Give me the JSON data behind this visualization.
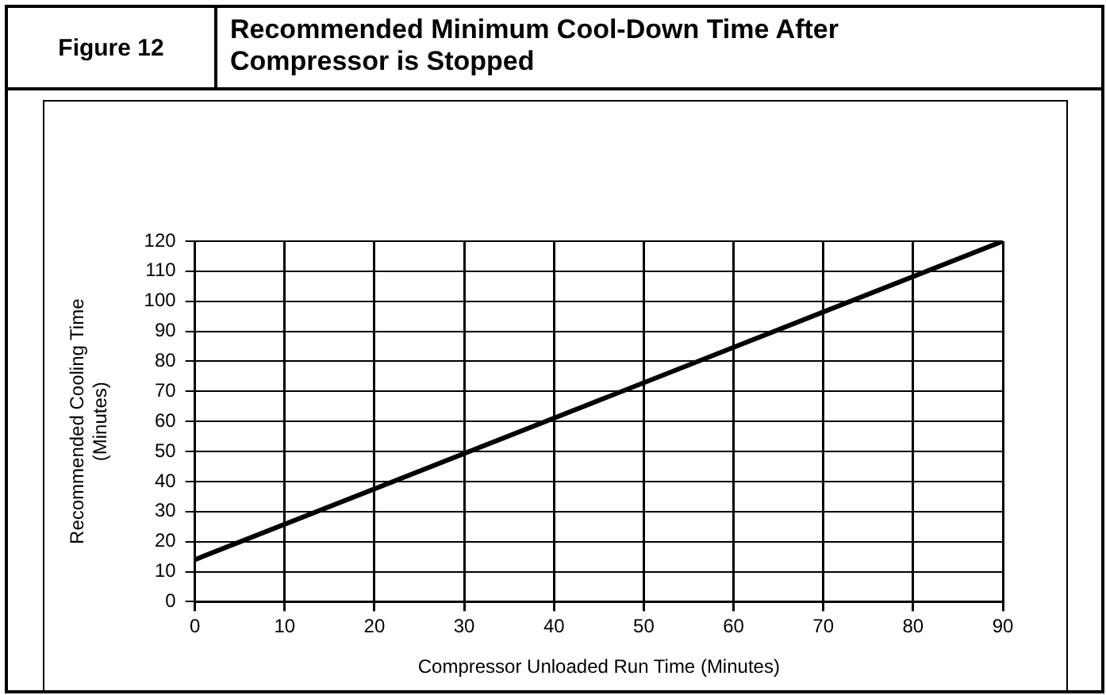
{
  "chart_data": {
    "type": "line",
    "title": "Recommended Minimum Cool-Down Time After Compressor is Stopped",
    "subtitle": "Figure 12",
    "xlabel": "Compressor Unloaded Run Time (Minutes)",
    "ylabel": "Recommended Cooling Time\n(Minutes)",
    "x": [
      0,
      90
    ],
    "series": [
      {
        "color": "#000000",
        "values": [
          14,
          120
        ]
      }
    ],
    "xlim": [
      0,
      90
    ],
    "xticks": [
      0,
      10,
      20,
      30,
      40,
      50,
      60,
      70,
      80,
      90
    ],
    "ylim": [
      0,
      120
    ],
    "yticks": [
      0,
      10,
      20,
      30,
      40,
      50,
      60,
      70,
      80,
      90,
      100,
      110,
      120
    ],
    "grid": true,
    "legend": false,
    "marker": "none",
    "line_style": "solid"
  }
}
